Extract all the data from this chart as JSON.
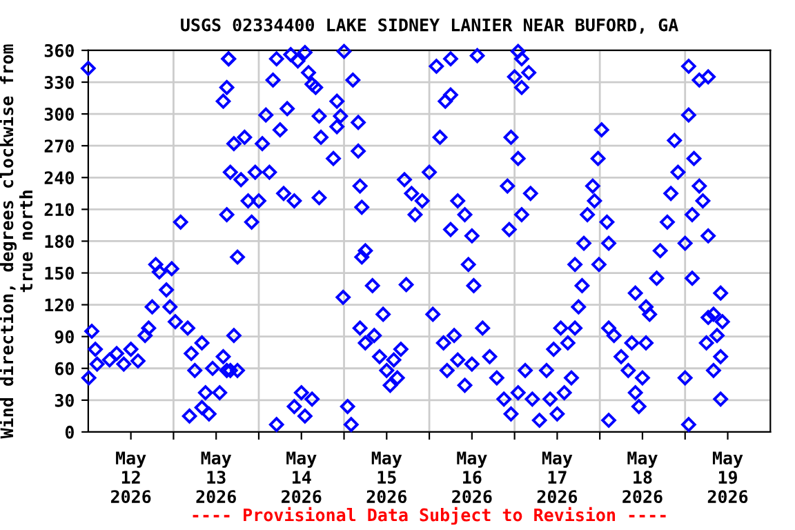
{
  "chart_data": {
    "type": "scatter",
    "title": "USGS 02334400 LAKE SIDNEY LANIER NEAR BUFORD, GA",
    "ylabel": "Wind direction, degrees clockwise from\ntrue north",
    "annotations": [
      "---- Provisional Data Subject to Revision ----"
    ],
    "marker": "diamond",
    "grid": true,
    "xlim": [
      "2026-05-12T00:00",
      "2026-05-20T00:00"
    ],
    "xticks": [
      {
        "value": "2026-05-12T12:00",
        "label": "May\n12\n2026"
      },
      {
        "value": "2026-05-13T00:00",
        "label": null
      },
      {
        "value": "2026-05-13T12:00",
        "label": "May\n13\n2026"
      },
      {
        "value": "2026-05-14T00:00",
        "label": null
      },
      {
        "value": "2026-05-14T12:00",
        "label": "May\n14\n2026"
      },
      {
        "value": "2026-05-15T00:00",
        "label": null
      },
      {
        "value": "2026-05-15T12:00",
        "label": "May\n15\n2026"
      },
      {
        "value": "2026-05-16T00:00",
        "label": null
      },
      {
        "value": "2026-05-16T12:00",
        "label": "May\n16\n2026"
      },
      {
        "value": "2026-05-17T00:00",
        "label": null
      },
      {
        "value": "2026-05-17T12:00",
        "label": "May\n17\n2026"
      },
      {
        "value": "2026-05-18T00:00",
        "label": null
      },
      {
        "value": "2026-05-18T12:00",
        "label": "May\n18\n2026"
      },
      {
        "value": "2026-05-19T00:00",
        "label": null
      },
      {
        "value": "2026-05-19T12:00",
        "label": "May\n19\n2026"
      }
    ],
    "ylim": [
      0,
      360
    ],
    "yticks": [
      0,
      30,
      60,
      90,
      120,
      150,
      180,
      210,
      240,
      270,
      300,
      330,
      360
    ],
    "series": [
      {
        "color": "#0000ff",
        "x": [
          "2026-05-12T00:00",
          "2026-05-12T01:00",
          "2026-05-12T02:00",
          "2026-05-12T00:10",
          "2026-05-12T02:30",
          "2026-05-12T06:00",
          "2026-05-12T08:00",
          "2026-05-12T10:00",
          "2026-05-12T12:00",
          "2026-05-12T14:00",
          "2026-05-12T16:00",
          "2026-05-12T17:00",
          "2026-05-12T18:00",
          "2026-05-12T19:00",
          "2026-05-12T20:00",
          "2026-05-12T22:00",
          "2026-05-12T23:00",
          "2026-05-12T23:30",
          "2026-05-13T00:30",
          "2026-05-13T02:00",
          "2026-05-13T04:00",
          "2026-05-13T05:00",
          "2026-05-13T06:00",
          "2026-05-13T08:00",
          "2026-05-13T09:00",
          "2026-05-13T10:00",
          "2026-05-13T11:00",
          "2026-05-13T13:00",
          "2026-05-13T14:00",
          "2026-05-13T15:00",
          "2026-05-13T16:00",
          "2026-05-13T17:00",
          "2026-05-13T18:00",
          "2026-05-13T04:30",
          "2026-05-13T08:00",
          "2026-05-13T14:00",
          "2026-05-13T15:00",
          "2026-05-13T15:30",
          "2026-05-13T16:00",
          "2026-05-13T17:00",
          "2026-05-13T15:00",
          "2026-05-13T15:30",
          "2026-05-13T18:00",
          "2026-05-13T19:00",
          "2026-05-13T20:00",
          "2026-05-13T21:00",
          "2026-05-13T22:00",
          "2026-05-13T23:00",
          "2026-05-14T00:00",
          "2026-05-14T01:00",
          "2026-05-14T02:00",
          "2026-05-14T03:00",
          "2026-05-14T04:00",
          "2026-05-14T05:00",
          "2026-05-14T06:00",
          "2026-05-14T07:00",
          "2026-05-14T08:00",
          "2026-05-14T09:00",
          "2026-05-14T10:00",
          "2026-05-14T11:00",
          "2026-05-14T13:00",
          "2026-05-14T14:00",
          "2026-05-14T15:00",
          "2026-05-14T17:00",
          "2026-05-14T17:30",
          "2026-05-14T21:00",
          "2026-05-14T22:00",
          "2026-05-14T23:00",
          "2026-05-14T13:00",
          "2026-05-14T10:00",
          "2026-05-14T05:00",
          "2026-05-14T15:00",
          "2026-05-14T17:00",
          "2026-05-14T22:00",
          "2026-05-14T12:00",
          "2026-05-14T16:00",
          "2026-05-15T00:00",
          "2026-05-15T02:30",
          "2026-05-15T04:00",
          "2026-05-15T04:00",
          "2026-05-15T04:30",
          "2026-05-15T05:00",
          "2026-05-15T06:00",
          "2026-05-15T05:00",
          "2026-05-15T08:00",
          "2026-05-14T23:45",
          "2026-05-15T01:00",
          "2026-05-15T02:00",
          "2026-05-15T04:30",
          "2026-05-15T06:00",
          "2026-05-15T08:30",
          "2026-05-15T10:00",
          "2026-05-15T12:00",
          "2026-05-15T14:00",
          "2026-05-15T15:00",
          "2026-05-15T13:00",
          "2026-05-15T16:00",
          "2026-05-15T11:00",
          "2026-05-15T17:00",
          "2026-05-15T19:00",
          "2026-05-15T22:00",
          "2026-05-15T20:00",
          "2026-05-16T00:00",
          "2026-05-15T17:30",
          "2026-05-16T02:00",
          "2026-05-16T06:00",
          "2026-05-16T04:30",
          "2026-05-16T06:00",
          "2026-05-16T03:00",
          "2026-05-16T01:00",
          "2026-05-16T04:00",
          "2026-05-16T05:00",
          "2026-05-16T07:00",
          "2026-05-16T08:00",
          "2026-05-16T10:00",
          "2026-05-16T12:00",
          "2026-05-16T06:00",
          "2026-05-16T08:00",
          "2026-05-16T10:00",
          "2026-05-16T12:00",
          "2026-05-16T11:00",
          "2026-05-16T12:30",
          "2026-05-16T13:30",
          "2026-05-16T15:00",
          "2026-05-16T17:00",
          "2026-05-16T19:00",
          "2026-05-16T21:00",
          "2026-05-16T23:00",
          "2026-05-17T01:00",
          "2026-05-17T03:00",
          "2026-05-17T05:00",
          "2026-05-17T07:00",
          "2026-05-17T00:00",
          "2026-05-16T22:30",
          "2026-05-16T22:00",
          "2026-05-17T01:00",
          "2026-05-17T01:00",
          "2026-05-17T02:00",
          "2026-05-17T04:00",
          "2026-05-17T02:00",
          "2026-05-17T04:30",
          "2026-05-17T02:00",
          "2026-05-16T23:00",
          "2026-05-17T09:00",
          "2026-05-17T11:00",
          "2026-05-17T13:00",
          "2026-05-17T15:00",
          "2026-05-17T10:00",
          "2026-05-17T12:00",
          "2026-05-17T14:00",
          "2026-05-17T16:00",
          "2026-05-17T17:00",
          "2026-05-17T18:00",
          "2026-05-17T19:00",
          "2026-05-17T19:30",
          "2026-05-17T20:30",
          "2026-05-17T22:00",
          "2026-05-17T23:30",
          "2026-05-18T00:30",
          "2026-05-17T22:30",
          "2026-05-18T02:00",
          "2026-05-18T02:30",
          "2026-05-17T23:45",
          "2026-05-17T17:00",
          "2026-05-18T02:30",
          "2026-05-18T04:00",
          "2026-05-18T06:00",
          "2026-05-18T08:00",
          "2026-05-18T10:00",
          "2026-05-18T11:00",
          "2026-05-18T12:00",
          "2026-05-18T09:00",
          "2026-05-18T13:00",
          "2026-05-18T14:00",
          "2026-05-18T16:00",
          "2026-05-18T17:00",
          "2026-05-18T19:00",
          "2026-05-18T20:00",
          "2026-05-18T22:00",
          "2026-05-18T21:00",
          "2026-05-18T02:30",
          "2026-05-18T10:00",
          "2026-05-18T13:00",
          "2026-05-19T00:00",
          "2026-05-19T02:00",
          "2026-05-19T04:00",
          "2026-05-19T02:30",
          "2026-05-19T01:00",
          "2026-05-19T01:00",
          "2026-05-19T04:00",
          "2026-05-19T06:30",
          "2026-05-19T05:00",
          "2026-05-19T06:30",
          "2026-05-19T08:00",
          "2026-05-19T09:00",
          "2026-05-19T10:00",
          "2026-05-19T10:30",
          "2026-05-19T06:00",
          "2026-05-19T08:00",
          "2026-05-19T10:00",
          "2026-05-19T06:30",
          "2026-05-19T02:00",
          "2026-05-19T00:00",
          "2026-05-19T01:00",
          "2026-05-19T10:00"
        ],
        "values": [
          343,
          95,
          78,
          51,
          64,
          68,
          74,
          64,
          78,
          67,
          91,
          98,
          118,
          158,
          151,
          134,
          118,
          154,
          104,
          198,
          98,
          74,
          58,
          84,
          37,
          17,
          60,
          37,
          71,
          58,
          58,
          91,
          58,
          15,
          23,
          312,
          325,
          352,
          245,
          272,
          205,
          352,
          165,
          238,
          278,
          218,
          198,
          245,
          218,
          272,
          299,
          245,
          332,
          352,
          285,
          225,
          305,
          356,
          218,
          350,
          358,
          339,
          328,
          298,
          278,
          258,
          288,
          298,
          15,
          24,
          7,
          31,
          221,
          312,
          37,
          325,
          359,
          332,
          292,
          265,
          232,
          212,
          171,
          165,
          138,
          127,
          24,
          7,
          98,
          84,
          91,
          71,
          58,
          68,
          51,
          44,
          78,
          111,
          238,
          225,
          218,
          205,
          245,
          139,
          345,
          352,
          312,
          318,
          278,
          111,
          84,
          58,
          91,
          68,
          44,
          64,
          191,
          218,
          205,
          185,
          158,
          138,
          355,
          98,
          71,
          51,
          31,
          17,
          37,
          58,
          31,
          11,
          335,
          191,
          232,
          258,
          359,
          352,
          339,
          325,
          225,
          205,
          278,
          58,
          78,
          98,
          84,
          31,
          17,
          37,
          51,
          98,
          118,
          138,
          178,
          205,
          232,
          258,
          285,
          218,
          198,
          178,
          158,
          158,
          98,
          91,
          71,
          58,
          37,
          24,
          51,
          84,
          84,
          111,
          145,
          171,
          198,
          225,
          245,
          275,
          11,
          131,
          118,
          178,
          205,
          232,
          258,
          299,
          345,
          332,
          335,
          218,
          185,
          111,
          91,
          71,
          104,
          84,
          58,
          31,
          108,
          145,
          51,
          7,
          131
        ]
      }
    ]
  }
}
